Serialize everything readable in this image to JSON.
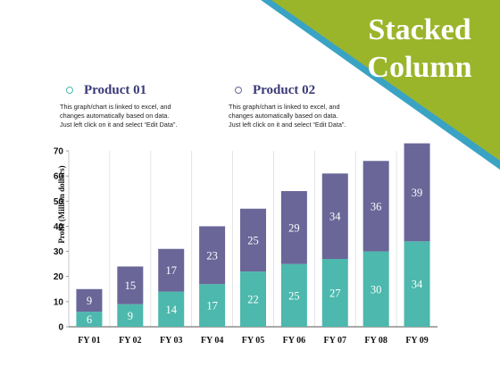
{
  "header": {
    "title_line1": "Stacked",
    "title_line2": "Column"
  },
  "legend": [
    {
      "name": "Product 01",
      "color": "#4db8ad",
      "description": [
        "This graph/chart is linked to excel, and",
        "changes automatically based on data.",
        "Just left click on it and select “Edit Data”."
      ]
    },
    {
      "name": "Product 02",
      "color": "#6a6698",
      "description": [
        "This graph/chart is linked to excel, and",
        "changes automatically based on data.",
        "Just left click on it and select “Edit Data”."
      ]
    }
  ],
  "colors": {
    "banner_green": "#9bb52b",
    "banner_stripe": "#3aa3c4",
    "product01": "#4db8ad",
    "product02": "#6a6698",
    "legend_name_text": "#3a3a78",
    "label_text": "#ffffff"
  },
  "chart_data": {
    "type": "bar",
    "stacked": true,
    "categories": [
      "FY 01",
      "FY 02",
      "FY 03",
      "FY 04",
      "FY 05",
      "FY 06",
      "FY 07",
      "FY 08",
      "FY 09"
    ],
    "series": [
      {
        "name": "Product 01",
        "values": [
          6,
          9,
          14,
          17,
          22,
          25,
          27,
          30,
          34
        ]
      },
      {
        "name": "Product 02",
        "values": [
          9,
          15,
          17,
          23,
          25,
          29,
          34,
          36,
          39
        ]
      }
    ],
    "ylabel": "Profit  (Million dollars)",
    "xlabel": "",
    "ylim": [
      0,
      70
    ],
    "yticks": [
      0,
      10,
      20,
      30,
      40,
      50,
      60,
      70
    ],
    "grid": "vertical",
    "legend_placement": "top"
  }
}
